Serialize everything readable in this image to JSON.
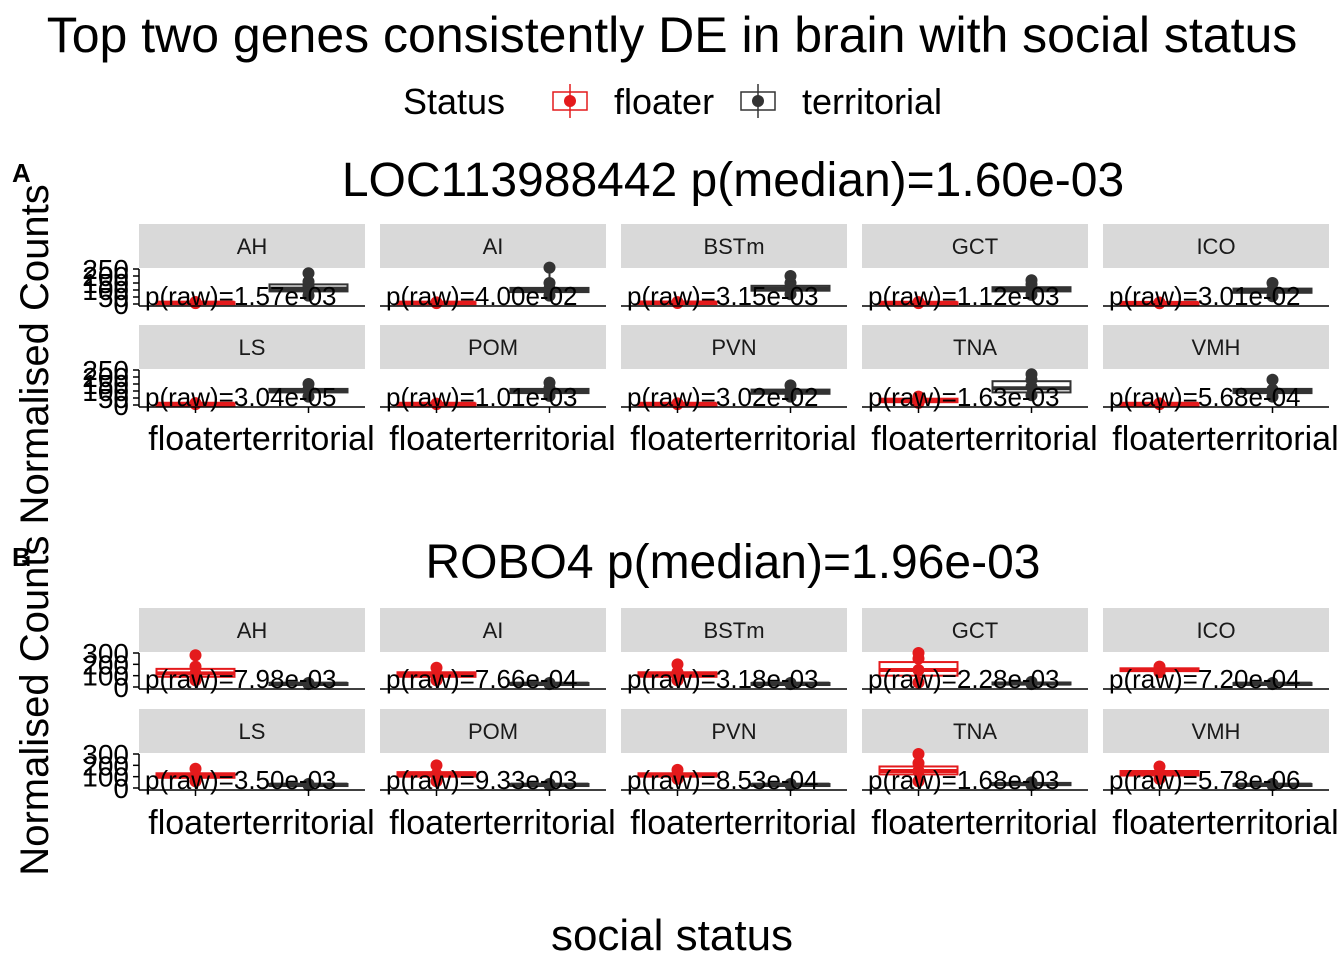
{
  "title": "Top two genes consistently DE in brain with social status",
  "legend": {
    "title": "Status",
    "position": "top",
    "items": [
      {
        "label": "floater",
        "color": "#E41A1C"
      },
      {
        "label": "territorial",
        "color": "#333333"
      }
    ]
  },
  "axes": {
    "xlabel": "social status",
    "ylabel": "Normalised Counts Normalised Counts",
    "x_categories": [
      "floater",
      "territorial"
    ]
  },
  "colors": {
    "floater": "#E41A1C",
    "territorial": "#333333",
    "strip": "#D9D9D9"
  },
  "chart_data": [
    {
      "type": "boxplot",
      "tag": "A",
      "title": "LOC113988442 p(median)=1.60e-03",
      "ylim": [
        0,
        250
      ],
      "yticks": [
        "0",
        "50",
        "100",
        "150",
        "200",
        "250"
      ],
      "facets": [
        {
          "region": "AH",
          "p_raw": "p(raw)=1.57e-03",
          "floater": {
            "min": 5,
            "q1": 7,
            "median": 10,
            "q3": 13,
            "max": 16,
            "points": [
              6,
              9,
              11,
              14
            ]
          },
          "territorial": {
            "min": 60,
            "q1": 90,
            "median": 110,
            "q3": 140,
            "max": 220,
            "points": [
              60,
              100,
              130,
              160,
              220
            ]
          }
        },
        {
          "region": "AI",
          "p_raw": "p(raw)=4.00e-02",
          "floater": {
            "min": 5,
            "q1": 7,
            "median": 10,
            "q3": 13,
            "max": 16,
            "points": [
              6,
              9,
              12
            ]
          },
          "territorial": {
            "min": 60,
            "q1": 85,
            "median": 100,
            "q3": 115,
            "max": 260,
            "points": [
              60,
              110,
              150,
              260
            ]
          }
        },
        {
          "region": "BSTm",
          "p_raw": "p(raw)=3.15e-03",
          "floater": {
            "min": 5,
            "q1": 8,
            "median": 11,
            "q3": 14,
            "max": 18,
            "points": [
              7,
              10,
              13
            ]
          },
          "territorial": {
            "min": 70,
            "q1": 95,
            "median": 110,
            "q3": 130,
            "max": 200,
            "points": [
              70,
              120,
              150,
              200
            ]
          }
        },
        {
          "region": "GCT",
          "p_raw": "p(raw)=1.12e-03",
          "floater": {
            "min": 5,
            "q1": 7,
            "median": 9,
            "q3": 12,
            "max": 15,
            "points": [
              6,
              9,
              13
            ]
          },
          "territorial": {
            "min": 65,
            "q1": 90,
            "median": 105,
            "q3": 120,
            "max": 170,
            "points": [
              65,
              110,
              140,
              170
            ]
          }
        },
        {
          "region": "ICO",
          "p_raw": "p(raw)=3.01e-02",
          "floater": {
            "min": 4,
            "q1": 6,
            "median": 8,
            "q3": 10,
            "max": 13,
            "points": [
              5,
              8,
              11
            ]
          },
          "territorial": {
            "min": 55,
            "q1": 80,
            "median": 95,
            "q3": 110,
            "max": 150,
            "points": [
              55,
              100,
              150
            ]
          }
        },
        {
          "region": "LS",
          "p_raw": "p(raw)=3.04e-05",
          "floater": {
            "min": 5,
            "q1": 7,
            "median": 9,
            "q3": 11,
            "max": 14,
            "points": [
              6,
              10,
              13
            ]
          },
          "territorial": {
            "min": 60,
            "q1": 90,
            "median": 100,
            "q3": 115,
            "max": 150,
            "points": [
              60,
              110,
              150
            ]
          }
        },
        {
          "region": "POM",
          "p_raw": "p(raw)=1.01e-03",
          "floater": {
            "min": 5,
            "q1": 7,
            "median": 9,
            "q3": 11,
            "max": 14,
            "points": [
              6,
              10
            ]
          },
          "territorial": {
            "min": 65,
            "q1": 85,
            "median": 100,
            "q3": 115,
            "max": 160,
            "points": [
              65,
              120,
              160
            ]
          }
        },
        {
          "region": "PVN",
          "p_raw": "p(raw)=3.02e-02",
          "floater": {
            "min": 5,
            "q1": 7,
            "median": 9,
            "q3": 11,
            "max": 14,
            "points": [
              6,
              12
            ]
          },
          "territorial": {
            "min": 60,
            "q1": 80,
            "median": 95,
            "q3": 110,
            "max": 140,
            "points": [
              60,
              100,
              140
            ]
          }
        },
        {
          "region": "TNA",
          "p_raw": "p(raw)=1.63e-03",
          "floater": {
            "min": 10,
            "q1": 20,
            "median": 35,
            "q3": 45,
            "max": 60,
            "points": [
              15,
              35,
              60
            ]
          },
          "territorial": {
            "min": 70,
            "q1": 90,
            "median": 120,
            "q3": 170,
            "max": 220,
            "points": [
              70,
              130,
              180,
              220
            ]
          }
        },
        {
          "region": "VMH",
          "p_raw": "p(raw)=5.68e-04",
          "floater": {
            "min": 5,
            "q1": 7,
            "median": 9,
            "q3": 11,
            "max": 14,
            "points": [
              6,
              12
            ]
          },
          "territorial": {
            "min": 60,
            "q1": 85,
            "median": 100,
            "q3": 115,
            "max": 180,
            "points": [
              60,
              110,
              180
            ]
          }
        }
      ]
    },
    {
      "type": "boxplot",
      "tag": "B",
      "title": "ROBO4 p(median)=1.96e-03",
      "ylim": [
        0,
        300
      ],
      "yticks": [
        "0",
        "100",
        "200",
        "300"
      ],
      "facets": [
        {
          "region": "AH",
          "p_raw": "p(raw)=7.98e-03",
          "floater": {
            "min": 60,
            "q1": 90,
            "median": 120,
            "q3": 160,
            "max": 280,
            "points": [
              60,
              120,
              180,
              280
            ]
          },
          "territorial": {
            "min": 20,
            "q1": 25,
            "median": 30,
            "q3": 35,
            "max": 40,
            "points": [
              25,
              35
            ]
          }
        },
        {
          "region": "AI",
          "p_raw": "p(raw)=7.66e-04",
          "floater": {
            "min": 60,
            "q1": 90,
            "median": 110,
            "q3": 130,
            "max": 170,
            "points": [
              60,
              110,
              170
            ]
          },
          "territorial": {
            "min": 20,
            "q1": 25,
            "median": 30,
            "q3": 35,
            "max": 40,
            "points": [
              25,
              35
            ]
          }
        },
        {
          "region": "BSTm",
          "p_raw": "p(raw)=3.18e-03",
          "floater": {
            "min": 60,
            "q1": 90,
            "median": 110,
            "q3": 130,
            "max": 200,
            "points": [
              60,
              130,
              200
            ]
          },
          "territorial": {
            "min": 20,
            "q1": 25,
            "median": 30,
            "q3": 35,
            "max": 40,
            "points": [
              25,
              35
            ]
          }
        },
        {
          "region": "GCT",
          "p_raw": "p(raw)=2.28e-03",
          "floater": {
            "min": 40,
            "q1": 100,
            "median": 150,
            "q3": 220,
            "max": 300,
            "points": [
              40,
              150,
              250,
              300
            ]
          },
          "territorial": {
            "min": 20,
            "q1": 25,
            "median": 30,
            "q3": 40,
            "max": 50,
            "points": [
              25,
              45
            ]
          }
        },
        {
          "region": "ICO",
          "p_raw": "p(raw)=7.20e-04",
          "floater": {
            "min": 120,
            "q1": 140,
            "median": 150,
            "q3": 165,
            "max": 180,
            "points": [
              130,
              150,
              180
            ]
          },
          "territorial": {
            "min": 20,
            "q1": 25,
            "median": 30,
            "q3": 35,
            "max": 40,
            "points": [
              25,
              35
            ]
          }
        },
        {
          "region": "LS",
          "p_raw": "p(raw)=3.50e-03",
          "floater": {
            "min": 60,
            "q1": 90,
            "median": 110,
            "q3": 130,
            "max": 170,
            "points": [
              60,
              110,
              170
            ]
          },
          "territorial": {
            "min": 20,
            "q1": 25,
            "median": 30,
            "q3": 35,
            "max": 40,
            "points": [
              25,
              35
            ]
          }
        },
        {
          "region": "POM",
          "p_raw": "p(raw)=9.33e-03",
          "floater": {
            "min": 60,
            "q1": 100,
            "median": 120,
            "q3": 140,
            "max": 200,
            "points": [
              60,
              120,
              200
            ]
          },
          "territorial": {
            "min": 20,
            "q1": 25,
            "median": 30,
            "q3": 35,
            "max": 40,
            "points": [
              25,
              35
            ]
          }
        },
        {
          "region": "PVN",
          "p_raw": "p(raw)=8.53e-04",
          "floater": {
            "min": 80,
            "q1": 100,
            "median": 115,
            "q3": 130,
            "max": 160,
            "points": [
              80,
              120,
              160
            ]
          },
          "territorial": {
            "min": 20,
            "q1": 25,
            "median": 30,
            "q3": 35,
            "max": 40,
            "points": [
              25,
              35
            ]
          }
        },
        {
          "region": "TNA",
          "p_raw": "p(raw)=1.68e-03",
          "floater": {
            "min": 60,
            "q1": 120,
            "median": 150,
            "q3": 190,
            "max": 300,
            "points": [
              60,
              150,
              220,
              300
            ]
          },
          "territorial": {
            "min": 20,
            "q1": 25,
            "median": 35,
            "q3": 45,
            "max": 60,
            "points": [
              25,
              50
            ]
          }
        },
        {
          "region": "VMH",
          "p_raw": "p(raw)=5.78e-06",
          "floater": {
            "min": 80,
            "q1": 110,
            "median": 130,
            "q3": 150,
            "max": 190,
            "points": [
              80,
              130,
              190
            ]
          },
          "territorial": {
            "min": 20,
            "q1": 25,
            "median": 30,
            "q3": 35,
            "max": 40,
            "points": [
              25,
              35
            ]
          }
        }
      ]
    }
  ]
}
